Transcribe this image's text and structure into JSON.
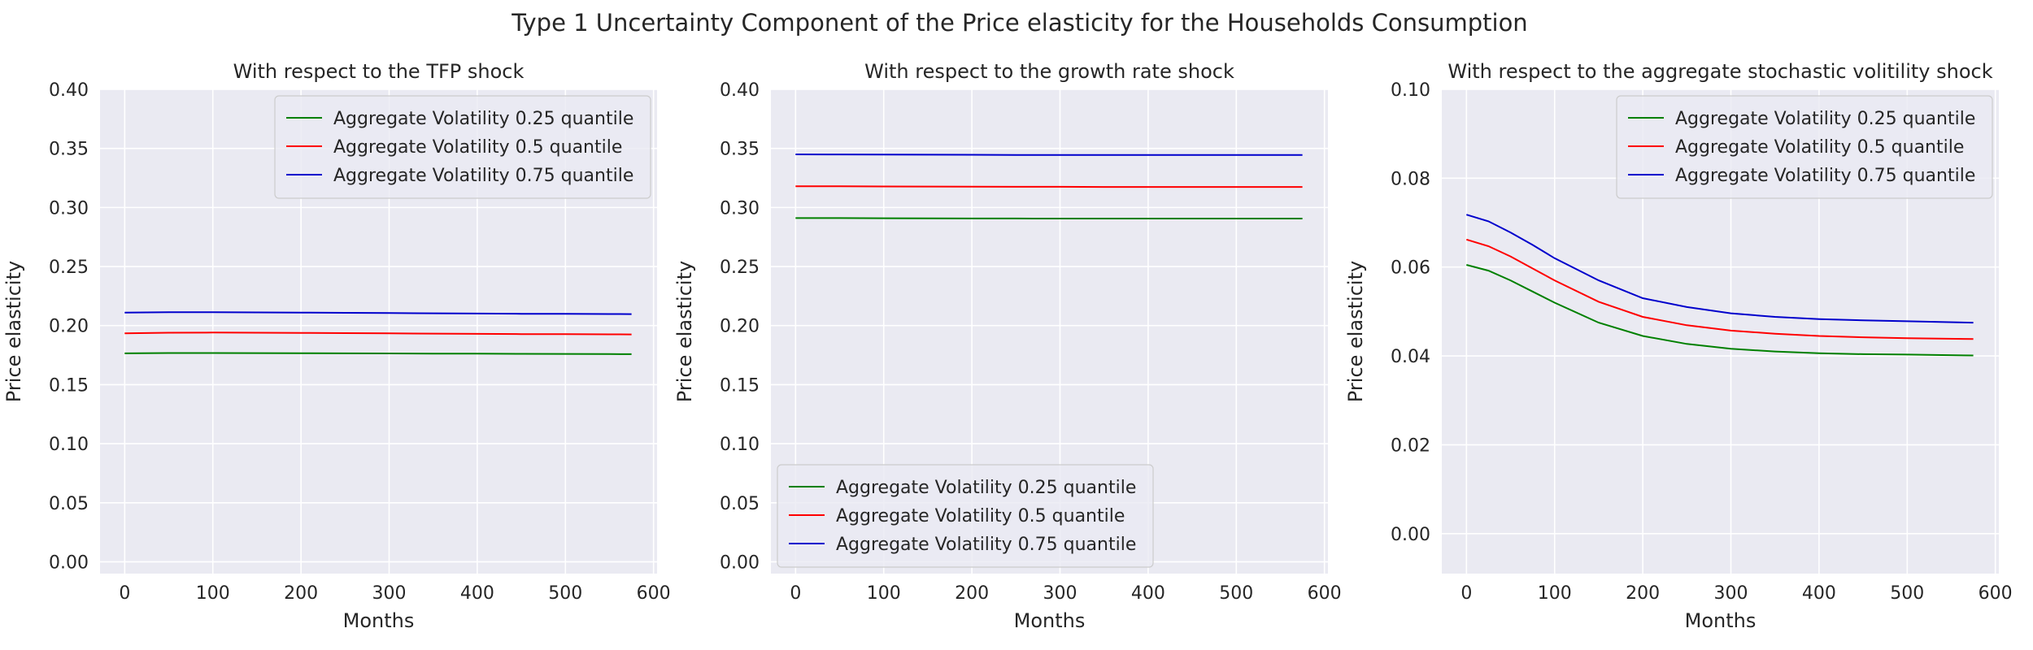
{
  "figure": {
    "title": "Type 1 Uncertainty Component of the Price elasticity for the Households Consumption"
  },
  "chart_data": [
    {
      "type": "line",
      "title": "With respect to the TFP shock",
      "xlabel": "Months",
      "ylabel": "Price elasticity",
      "xlim": [
        -28,
        604
      ],
      "ylim": [
        -0.01,
        0.4
      ],
      "xticks": [
        "0",
        "100",
        "200",
        "300",
        "400",
        "500",
        "600"
      ],
      "yticks": [
        "0.00",
        "0.05",
        "0.10",
        "0.15",
        "0.20",
        "0.25",
        "0.30",
        "0.35",
        "0.40"
      ],
      "grid": true,
      "legend_position": "top-right",
      "x": [
        0,
        50,
        100,
        150,
        200,
        250,
        300,
        350,
        400,
        450,
        500,
        550,
        575
      ],
      "series": [
        {
          "name": "Aggregate Volatility 0.25 quantile",
          "color": "#008000",
          "values": [
            0.1765,
            0.1768,
            0.1768,
            0.1767,
            0.1766,
            0.1765,
            0.1764,
            0.1763,
            0.1762,
            0.1761,
            0.176,
            0.1759,
            0.1758
          ]
        },
        {
          "name": "Aggregate Volatility 0.5 quantile",
          "color": "#ff0000",
          "values": [
            0.1935,
            0.194,
            0.1941,
            0.194,
            0.1938,
            0.1936,
            0.1934,
            0.1932,
            0.193,
            0.1928,
            0.1927,
            0.1926,
            0.1925
          ]
        },
        {
          "name": "Aggregate Volatility 0.75 quantile",
          "color": "#0000cc",
          "values": [
            0.211,
            0.2113,
            0.2113,
            0.2112,
            0.211,
            0.2108,
            0.2106,
            0.2104,
            0.2102,
            0.21,
            0.2099,
            0.2098,
            0.2097
          ]
        }
      ]
    },
    {
      "type": "line",
      "title": "With respect to the growth rate shock",
      "xlabel": "Months",
      "ylabel": "Price elasticity",
      "xlim": [
        -28,
        604
      ],
      "ylim": [
        -0.01,
        0.4
      ],
      "xticks": [
        "0",
        "100",
        "200",
        "300",
        "400",
        "500",
        "600"
      ],
      "yticks": [
        "0.00",
        "0.05",
        "0.10",
        "0.15",
        "0.20",
        "0.25",
        "0.30",
        "0.35",
        "0.40"
      ],
      "grid": true,
      "legend_position": "bottom-left",
      "x": [
        0,
        50,
        100,
        150,
        200,
        250,
        300,
        350,
        400,
        450,
        500,
        550,
        575
      ],
      "series": [
        {
          "name": "Aggregate Volatility 0.25 quantile",
          "color": "#008000",
          "values": [
            0.291,
            0.291,
            0.2909,
            0.2908,
            0.2907,
            0.2907,
            0.2906,
            0.2906,
            0.2906,
            0.2906,
            0.2906,
            0.2906,
            0.2906
          ]
        },
        {
          "name": "Aggregate Volatility 0.5 quantile",
          "color": "#ff0000",
          "values": [
            0.318,
            0.3179,
            0.3178,
            0.3177,
            0.3176,
            0.3175,
            0.3175,
            0.3174,
            0.3174,
            0.3174,
            0.3174,
            0.3174,
            0.3174
          ]
        },
        {
          "name": "Aggregate Volatility 0.75 quantile",
          "color": "#0000cc",
          "values": [
            0.345,
            0.3449,
            0.3448,
            0.3447,
            0.3446,
            0.3445,
            0.3445,
            0.3444,
            0.3444,
            0.3444,
            0.3444,
            0.3444,
            0.3444
          ]
        }
      ]
    },
    {
      "type": "line",
      "title": "With respect to the aggregate stochastic volitility shock",
      "xlabel": "Months",
      "ylabel": "Price elasticity",
      "xlim": [
        -28,
        604
      ],
      "ylim": [
        -0.009,
        0.1
      ],
      "xticks": [
        "0",
        "100",
        "200",
        "300",
        "400",
        "500",
        "600"
      ],
      "yticks": [
        "0.00",
        "0.02",
        "0.04",
        "0.06",
        "0.08",
        "0.10"
      ],
      "grid": true,
      "legend_position": "top-right",
      "x": [
        0,
        25,
        50,
        75,
        100,
        150,
        200,
        250,
        300,
        350,
        400,
        450,
        500,
        575
      ],
      "series": [
        {
          "name": "Aggregate Volatility 0.25 quantile",
          "color": "#008000",
          "values": [
            0.0605,
            0.0592,
            0.057,
            0.0545,
            0.052,
            0.0475,
            0.0445,
            0.0427,
            0.0416,
            0.041,
            0.0406,
            0.0404,
            0.0403,
            0.0401
          ]
        },
        {
          "name": "Aggregate Volatility 0.5 quantile",
          "color": "#ff0000",
          "values": [
            0.0662,
            0.0647,
            0.0624,
            0.0597,
            0.057,
            0.0522,
            0.0488,
            0.0469,
            0.0457,
            0.045,
            0.0445,
            0.0442,
            0.044,
            0.0438
          ]
        },
        {
          "name": "Aggregate Volatility 0.75 quantile",
          "color": "#0000cc",
          "values": [
            0.0718,
            0.0703,
            0.0678,
            0.065,
            0.062,
            0.057,
            0.053,
            0.051,
            0.0496,
            0.0488,
            0.0483,
            0.048,
            0.0478,
            0.0475
          ]
        }
      ]
    }
  ]
}
